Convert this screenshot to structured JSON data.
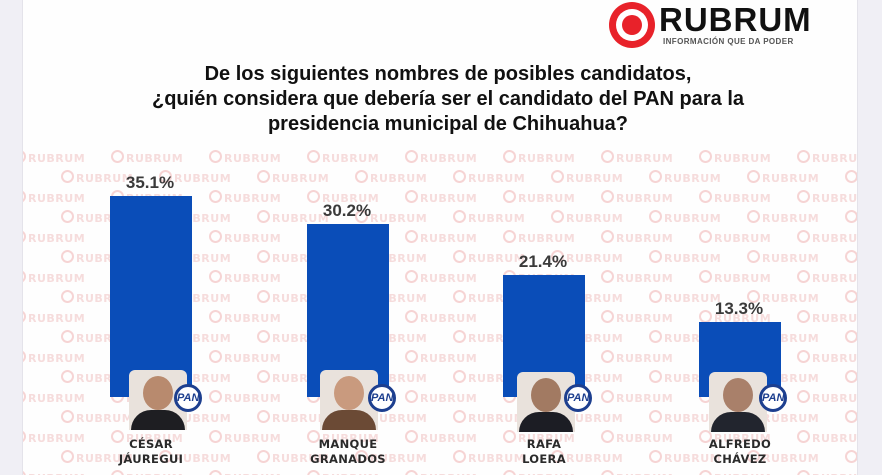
{
  "brand": {
    "name": "RUBRUM",
    "tagline": "INFORMACIÓN QUE DA PODER",
    "accent_color": "#e8222a",
    "watermark_text": "RUBRUM"
  },
  "chart_data": {
    "type": "bar",
    "title": "De los siguientes nombres de posibles candidatos, ¿quién considera que debería ser el candidato del PAN para la presidencia municipal de Chihuahua?",
    "categories": [
      "CÉSAR JÁUREGUI",
      "MANQUE GRANADOS",
      "RAFA LOERA",
      "ALFREDO CHÁVEZ"
    ],
    "values": [
      35.1,
      30.2,
      21.4,
      13.3
    ],
    "value_labels": [
      "35.1%",
      "30.2%",
      "21.4%",
      "13.3%"
    ],
    "xlabel": "",
    "ylabel": "",
    "unit": "%",
    "grid": false,
    "legend": false,
    "bar_color": "#0a4db8",
    "party_badge": "PAN"
  },
  "title": {
    "line1": "De los siguientes nombres de posibles candidatos,",
    "line2": "¿quién considera que debería ser el candidato del PAN para la",
    "line3": "presidencia municipal de Chihuahua?"
  },
  "candidates": [
    {
      "first": "CÉSAR",
      "last": "JÁUREGUI",
      "value_label": "35.1%",
      "party": "PAN"
    },
    {
      "first": "MANQUE",
      "last": "GRANADOS",
      "value_label": "30.2%",
      "party": "PAN"
    },
    {
      "first": "RAFA",
      "last": "LOERA",
      "value_label": "21.4%",
      "party": "PAN"
    },
    {
      "first": "ALFREDO",
      "last": "CHÁVEZ",
      "value_label": "13.3%",
      "party": "PAN"
    }
  ]
}
